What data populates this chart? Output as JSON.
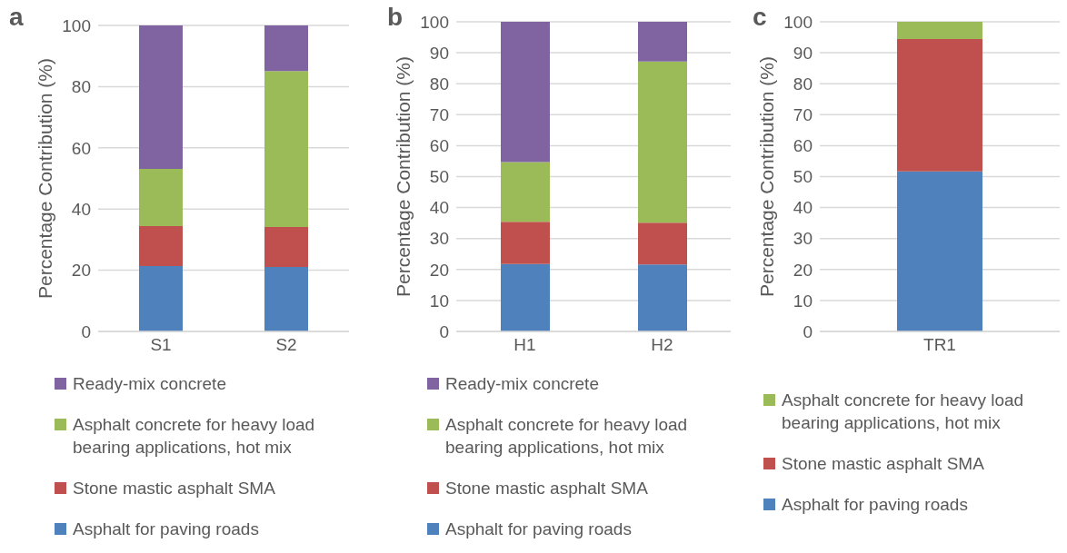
{
  "chart_data": [
    {
      "type": "bar",
      "title": "a",
      "ylabel": "Percentage Contribution (%)",
      "categories": [
        "S1",
        "S2"
      ],
      "stacked": true,
      "ylim": [
        0,
        100
      ],
      "yticks": [
        0,
        20,
        40,
        60,
        80,
        100
      ],
      "grid": "y",
      "legend": "bottom",
      "series": [
        {
          "name": "Asphalt for paving roads",
          "color": "#4f81bd",
          "values": [
            21.4,
            21.1
          ]
        },
        {
          "name": "Stone mastic asphalt SMA",
          "color": "#c0504d",
          "values": [
            13.0,
            13.0
          ]
        },
        {
          "name": "Asphalt concrete for heavy load bearing applications, hot mix",
          "color": "#9bbb59",
          "values": [
            18.7,
            51.0
          ]
        },
        {
          "name": "Ready-mix concrete",
          "color": "#8064a2",
          "values": [
            46.9,
            14.9
          ]
        }
      ]
    },
    {
      "type": "bar",
      "title": "b",
      "ylabel": "Percentage Contribution (%)",
      "categories": [
        "H1",
        "H2"
      ],
      "stacked": true,
      "ylim": [
        0,
        100
      ],
      "yticks": [
        0,
        10,
        20,
        30,
        40,
        50,
        60,
        70,
        80,
        90,
        100
      ],
      "grid": "y",
      "legend": "bottom",
      "series": [
        {
          "name": "Asphalt for paving roads",
          "color": "#4f81bd",
          "values": [
            21.8,
            21.6
          ]
        },
        {
          "name": "Stone mastic asphalt SMA",
          "color": "#c0504d",
          "values": [
            13.6,
            13.5
          ]
        },
        {
          "name": "Asphalt concrete for heavy load bearing applications, hot mix",
          "color": "#9bbb59",
          "values": [
            19.3,
            52.1
          ]
        },
        {
          "name": "Ready-mix concrete",
          "color": "#8064a2",
          "values": [
            45.3,
            12.8
          ]
        }
      ]
    },
    {
      "type": "bar",
      "title": "c",
      "ylabel": "Percentage Contribution (%)",
      "categories": [
        "TR1"
      ],
      "stacked": true,
      "ylim": [
        0,
        100
      ],
      "yticks": [
        0,
        10,
        20,
        30,
        40,
        50,
        60,
        70,
        80,
        90,
        100
      ],
      "grid": "y",
      "legend": "bottom",
      "series": [
        {
          "name": "Asphalt for paving roads",
          "color": "#4f81bd",
          "values": [
            51.7
          ]
        },
        {
          "name": "Stone mastic asphalt SMA",
          "color": "#c0504d",
          "values": [
            42.7
          ]
        },
        {
          "name": "Asphalt concrete for heavy load bearing applications, hot mix",
          "color": "#9bbb59",
          "values": [
            5.6
          ]
        }
      ]
    }
  ]
}
